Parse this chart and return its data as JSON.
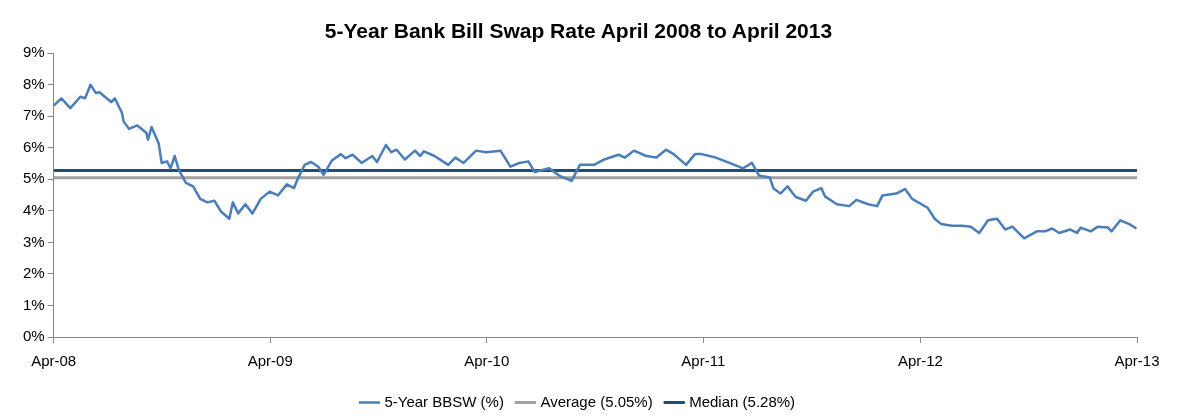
{
  "chart_data": {
    "type": "line",
    "title": "5-Year Bank Bill Swap Rate April 2008 to April 2013",
    "xlim": [
      "2008-04-01",
      "2013-04-01"
    ],
    "xticks": [
      {
        "value": "2008-04-01",
        "label": "Apr-08"
      },
      {
        "value": "2009-04-01",
        "label": "Apr-09"
      },
      {
        "value": "2010-04-01",
        "label": "Apr-10"
      },
      {
        "value": "2011-04-01",
        "label": "Apr-11"
      },
      {
        "value": "2012-04-01",
        "label": "Apr-12"
      },
      {
        "value": "2013-04-01",
        "label": "Apr-13"
      }
    ],
    "ylim": [
      0,
      9
    ],
    "yticks": [
      {
        "value": 0,
        "label": "0%"
      },
      {
        "value": 1,
        "label": "1%"
      },
      {
        "value": 2,
        "label": "2%"
      },
      {
        "value": 3,
        "label": "3%"
      },
      {
        "value": 4,
        "label": "4%"
      },
      {
        "value": 5,
        "label": "5%"
      },
      {
        "value": 6,
        "label": "6%"
      },
      {
        "value": 7,
        "label": "7%"
      },
      {
        "value": 8,
        "label": "8%"
      },
      {
        "value": 9,
        "label": "9%"
      }
    ],
    "grid": false,
    "legend": "bottom",
    "marker": "none",
    "line_style": "solid",
    "x": [
      "2008-04-01",
      "2008-04-14",
      "2008-04-29",
      "2008-05-16",
      "2008-05-24",
      "2008-06-02",
      "2008-06-11",
      "2008-06-17",
      "2008-07-07",
      "2008-07-13",
      "2008-07-25",
      "2008-07-28",
      "2008-08-06",
      "2008-08-20",
      "2008-09-04",
      "2008-09-07",
      "2008-09-13",
      "2008-09-25",
      "2008-09-30",
      "2008-10-09",
      "2008-10-15",
      "2008-10-22",
      "2008-10-29",
      "2008-11-10",
      "2008-11-22",
      "2008-12-04",
      "2008-12-16",
      "2008-12-28",
      "2009-01-08",
      "2009-01-22",
      "2009-01-28",
      "2009-02-06",
      "2009-02-18",
      "2009-03-02",
      "2009-03-16",
      "2009-03-31",
      "2009-04-14",
      "2009-04-29",
      "2009-05-11",
      "2009-05-17",
      "2009-05-29",
      "2009-06-09",
      "2009-06-21",
      "2009-06-30",
      "2009-07-14",
      "2009-07-29",
      "2009-08-06",
      "2009-08-18",
      "2009-09-02",
      "2009-09-20",
      "2009-09-28",
      "2009-10-13",
      "2009-10-22",
      "2009-10-31",
      "2009-11-14",
      "2009-12-01",
      "2009-12-10",
      "2009-12-16",
      "2010-01-03",
      "2010-01-26",
      "2010-02-07",
      "2010-02-21",
      "2010-03-14",
      "2010-03-31",
      "2010-04-24",
      "2010-05-11",
      "2010-05-26",
      "2010-06-10",
      "2010-06-21",
      "2010-07-15",
      "2010-08-01",
      "2010-08-22",
      "2010-09-05",
      "2010-09-29",
      "2010-10-16",
      "2010-11-09",
      "2010-11-20",
      "2010-12-05",
      "2010-12-26",
      "2011-01-12",
      "2011-01-28",
      "2011-02-10",
      "2011-03-03",
      "2011-03-18",
      "2011-03-29",
      "2011-04-22",
      "2011-05-15",
      "2011-06-07",
      "2011-06-22",
      "2011-07-04",
      "2011-07-22",
      "2011-07-28",
      "2011-08-09",
      "2011-08-21",
      "2011-08-30",
      "2011-09-04",
      "2011-09-21",
      "2011-10-03",
      "2011-10-17",
      "2011-10-23",
      "2011-11-12",
      "2011-12-03",
      "2011-12-15",
      "2012-01-04",
      "2012-01-19",
      "2012-01-28",
      "2012-02-20",
      "2012-03-06",
      "2012-03-18",
      "2012-04-13",
      "2012-04-25",
      "2012-05-06",
      "2012-05-24",
      "2012-06-10",
      "2012-06-25",
      "2012-07-09",
      "2012-07-24",
      "2012-08-08",
      "2012-08-22",
      "2012-09-03",
      "2012-09-23",
      "2012-10-14",
      "2012-10-28",
      "2012-11-09",
      "2012-11-21",
      "2012-12-09",
      "2012-12-21",
      "2012-12-27",
      "2013-01-13",
      "2013-01-25",
      "2013-02-11",
      "2013-02-17",
      "2013-03-04",
      "2013-03-19",
      "2013-03-31"
    ],
    "series": [
      {
        "name": "5-Year BBSW (%)",
        "color": "#4a7ebb",
        "values": [
          7.34,
          7.57,
          7.26,
          7.62,
          7.57,
          8.0,
          7.74,
          7.76,
          7.45,
          7.57,
          7.11,
          6.83,
          6.6,
          6.71,
          6.48,
          6.26,
          6.66,
          6.14,
          5.52,
          5.57,
          5.35,
          5.74,
          5.29,
          4.89,
          4.78,
          4.38,
          4.27,
          4.32,
          3.98,
          3.75,
          4.27,
          3.92,
          4.21,
          3.92,
          4.38,
          4.61,
          4.49,
          4.84,
          4.72,
          5.0,
          5.46,
          5.55,
          5.4,
          5.14,
          5.6,
          5.8,
          5.67,
          5.78,
          5.52,
          5.74,
          5.55,
          6.09,
          5.86,
          5.94,
          5.63,
          5.91,
          5.74,
          5.89,
          5.74,
          5.46,
          5.69,
          5.52,
          5.91,
          5.86,
          5.91,
          5.4,
          5.52,
          5.57,
          5.23,
          5.35,
          5.12,
          4.95,
          5.46,
          5.46,
          5.63,
          5.78,
          5.69,
          5.91,
          5.74,
          5.69,
          5.94,
          5.8,
          5.46,
          5.8,
          5.8,
          5.69,
          5.52,
          5.35,
          5.52,
          5.12,
          5.06,
          4.72,
          4.55,
          4.78,
          4.55,
          4.44,
          4.32,
          4.61,
          4.72,
          4.46,
          4.21,
          4.15,
          4.35,
          4.21,
          4.15,
          4.49,
          4.55,
          4.69,
          4.38,
          4.1,
          3.75,
          3.58,
          3.53,
          3.53,
          3.5,
          3.3,
          3.7,
          3.75,
          3.41,
          3.5,
          3.13,
          3.35,
          3.35,
          3.44,
          3.3,
          3.41,
          3.3,
          3.47,
          3.35,
          3.5,
          3.47,
          3.35,
          3.7,
          3.58,
          3.44
        ]
      }
    ],
    "ref_lines": [
      {
        "axis": "y",
        "value": 5.05,
        "label": "Average (5.05%)",
        "color": "#a0a0a0"
      },
      {
        "axis": "y",
        "value": 5.28,
        "label": "Median (5.28%)",
        "color": "#1f4e79"
      }
    ]
  }
}
